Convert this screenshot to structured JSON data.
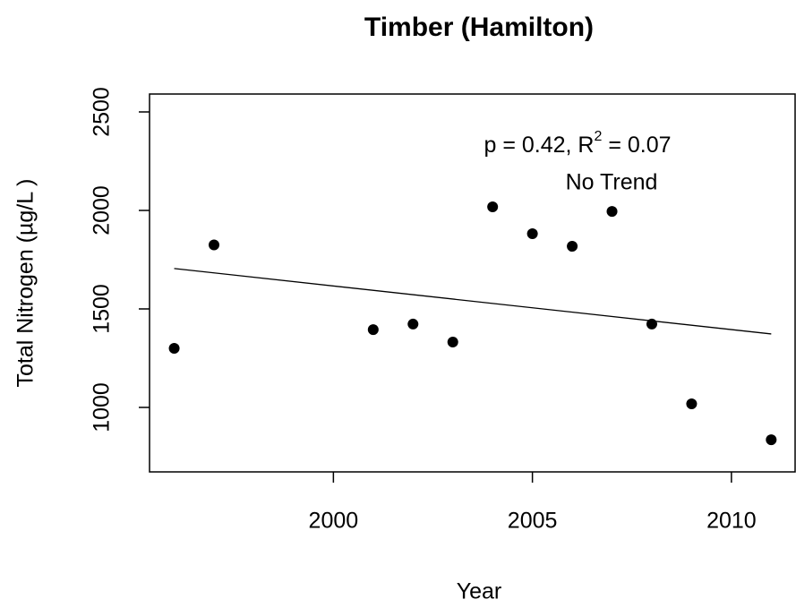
{
  "chart_data": {
    "type": "scatter",
    "title": "Timber (Hamilton)",
    "x_label": "Year",
    "y_label": "Total Nitrogen (µg/L )",
    "x": [
      1996,
      1997,
      2001,
      2002,
      2003,
      2004,
      2005,
      2006,
      2007,
      2008,
      2009,
      2011
    ],
    "series": [
      {
        "color": "#000000",
        "values": [
          1300,
          1825,
          1395,
          1423,
          1332,
          2018,
          1882,
          1818,
          1995,
          1423,
          1018,
          836
        ]
      }
    ],
    "trend": {
      "x": [
        1996,
        2011
      ],
      "values": [
        1705,
        1373
      ],
      "color": "#000000"
    },
    "stat_text": [
      "p = 0.42, R",
      "2",
      " = 0.07"
    ],
    "trend_label": "No Trend",
    "xlim": [
      1995.38,
      2011.6
    ],
    "ylim": [
      672.7,
      2590.9
    ],
    "xticks": [
      2000,
      2005,
      2010
    ],
    "yticks": [
      1000,
      1500,
      2000,
      2500
    ]
  }
}
